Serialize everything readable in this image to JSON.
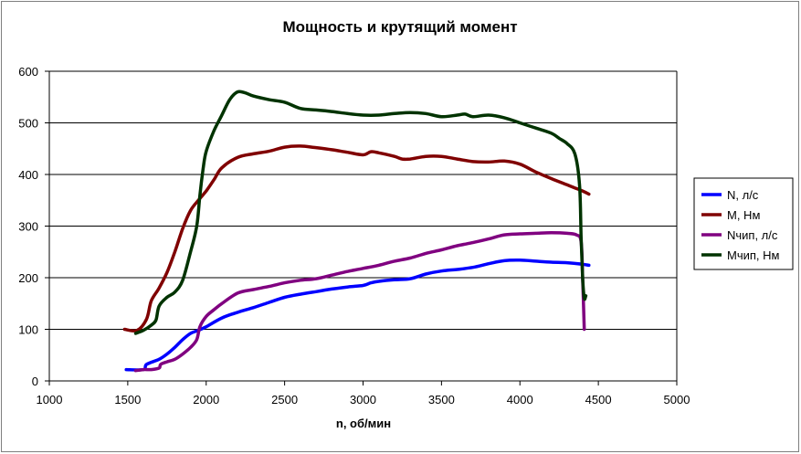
{
  "chart_data": {
    "type": "line",
    "title": "Мощность и крутящий момент",
    "xlabel": "n, об/мин",
    "ylabel": "",
    "xlim": [
      1000,
      5000
    ],
    "ylim": [
      0,
      600
    ],
    "xticks": [
      1000,
      1500,
      2000,
      2500,
      3000,
      3500,
      4000,
      4500,
      5000
    ],
    "yticks": [
      0,
      100,
      200,
      300,
      400,
      500,
      600
    ],
    "grid": "horizontal",
    "legend_position": "right",
    "series": [
      {
        "name": "N, л/с",
        "color": "#0000ff",
        "x": [
          1490,
          1600,
          1620,
          1700,
          1750,
          1800,
          1850,
          1900,
          1950,
          2000,
          2100,
          2200,
          2300,
          2400,
          2500,
          2600,
          2700,
          2800,
          2900,
          3000,
          3050,
          3100,
          3200,
          3300,
          3400,
          3500,
          3600,
          3700,
          3800,
          3900,
          4000,
          4100,
          4200,
          4300,
          4400,
          4440
        ],
        "y": [
          22,
          22,
          32,
          42,
          52,
          65,
          80,
          92,
          98,
          105,
          122,
          133,
          142,
          152,
          162,
          168,
          173,
          178,
          182,
          185,
          190,
          193,
          196,
          198,
          207,
          213,
          216,
          220,
          227,
          233,
          234,
          232,
          230,
          229,
          226,
          224
        ]
      },
      {
        "name": "M, Нм",
        "color": "#800000",
        "x": [
          1480,
          1560,
          1620,
          1650,
          1700,
          1750,
          1800,
          1850,
          1900,
          1950,
          2000,
          2050,
          2100,
          2200,
          2300,
          2400,
          2500,
          2600,
          2700,
          2800,
          2900,
          3000,
          3050,
          3100,
          3200,
          3250,
          3300,
          3400,
          3500,
          3600,
          3700,
          3800,
          3900,
          4000,
          4100,
          4200,
          4300,
          4350,
          4400,
          4440
        ],
        "y": [
          100,
          98,
          120,
          155,
          180,
          210,
          250,
          295,
          330,
          350,
          368,
          390,
          413,
          433,
          440,
          445,
          453,
          455,
          452,
          448,
          443,
          438,
          444,
          442,
          435,
          430,
          430,
          435,
          435,
          430,
          425,
          424,
          426,
          420,
          405,
          392,
          380,
          374,
          368,
          362
        ]
      },
      {
        "name": "Nчип, л/с",
        "color": "#800080",
        "x": [
          1550,
          1600,
          1650,
          1700,
          1710,
          1750,
          1800,
          1850,
          1900,
          1940,
          1960,
          2000,
          2050,
          2100,
          2200,
          2300,
          2400,
          2500,
          2600,
          2700,
          2800,
          2900,
          3000,
          3100,
          3200,
          3300,
          3400,
          3500,
          3600,
          3700,
          3800,
          3900,
          4000,
          4100,
          4200,
          4300,
          4360,
          4390,
          4400,
          4410
        ],
        "y": [
          20,
          22,
          22,
          25,
          32,
          37,
          42,
          52,
          65,
          80,
          105,
          125,
          138,
          150,
          170,
          177,
          183,
          190,
          195,
          198,
          205,
          212,
          218,
          224,
          232,
          238,
          247,
          254,
          262,
          268,
          275,
          283,
          285,
          286,
          287,
          286,
          283,
          270,
          200,
          100
        ]
      },
      {
        "name": "Mчип, Нм",
        "color": "#003300",
        "x": [
          1550,
          1600,
          1650,
          1680,
          1700,
          1750,
          1800,
          1850,
          1900,
          1940,
          1960,
          1980,
          2000,
          2050,
          2100,
          2150,
          2200,
          2250,
          2300,
          2400,
          2500,
          2600,
          2700,
          2800,
          2900,
          3000,
          3100,
          3200,
          3300,
          3400,
          3500,
          3600,
          3650,
          3700,
          3800,
          3900,
          4000,
          4100,
          4200,
          4250,
          4300,
          4350,
          4380,
          4390,
          4400,
          4410,
          4420
        ],
        "y": [
          92,
          98,
          108,
          118,
          145,
          162,
          172,
          195,
          250,
          300,
          360,
          410,
          445,
          485,
          515,
          545,
          560,
          558,
          552,
          545,
          540,
          528,
          525,
          522,
          518,
          515,
          515,
          518,
          520,
          518,
          512,
          515,
          517,
          512,
          515,
          510,
          500,
          490,
          480,
          470,
          460,
          440,
          380,
          280,
          200,
          160,
          165
        ]
      }
    ]
  }
}
